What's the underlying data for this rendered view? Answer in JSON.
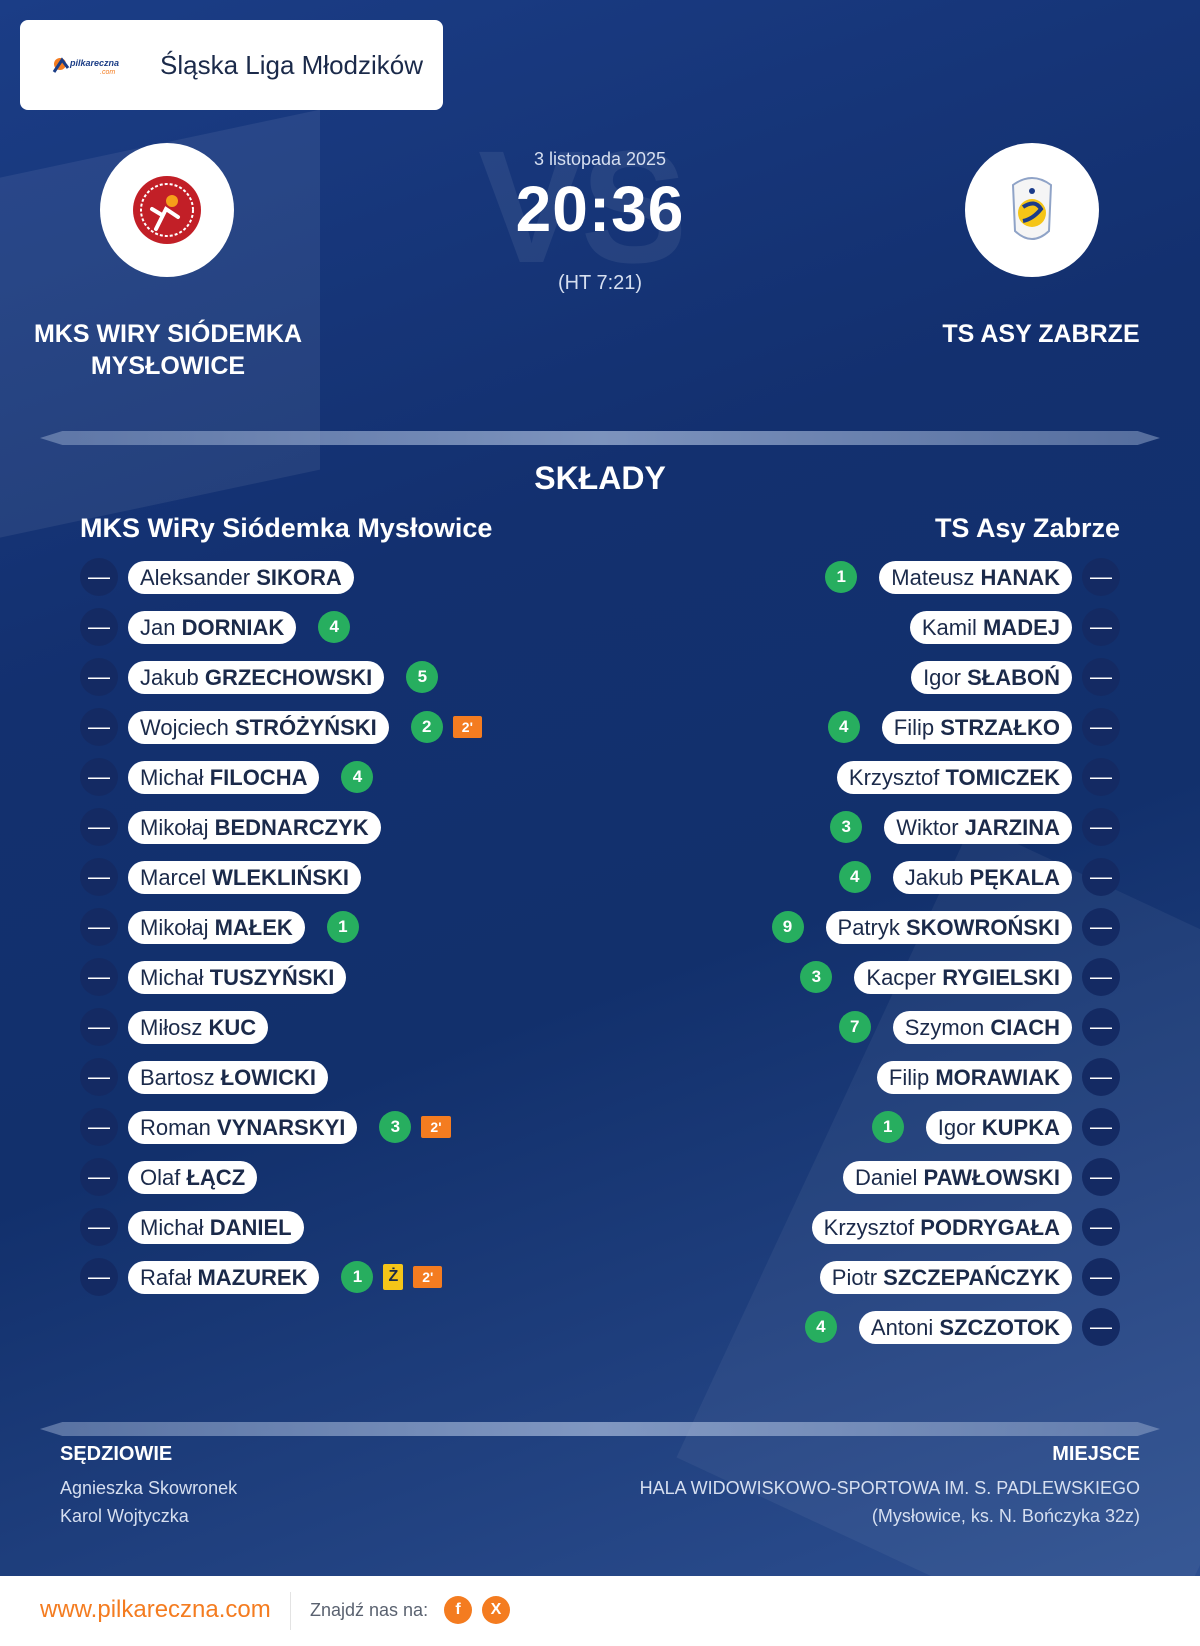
{
  "league": {
    "name": "Śląska Liga Młodzików",
    "logo_text": "pilkareczna.com"
  },
  "match": {
    "date": "3 listopada 2025",
    "score": "20:36",
    "halftime": "(HT 7:21)",
    "watermark": "VS"
  },
  "home_team": {
    "header_name": "MKS WIRY SIÓDEMKA MYSŁOWICE",
    "squad_name": "MKS WiRy Siódemka Mysłowice",
    "crest_colors": [
      "#c21f27",
      "#ffffff"
    ]
  },
  "away_team": {
    "header_name": "TS ASY ZABRZE",
    "squad_name": "TS Asy Zabrze",
    "crest_colors": [
      "#1a3b8a",
      "#f5c518"
    ]
  },
  "section_title": "SKŁADY",
  "colors": {
    "goal": "#27ae5f",
    "suspension": "#f47c20",
    "yellow_card": "#f5c518",
    "brand_orange": "#f47c20",
    "navy": "#142a63"
  },
  "home_players": [
    {
      "number": "—",
      "first": "Aleksander",
      "last": "SIKORA",
      "goals": "",
      "events": []
    },
    {
      "number": "—",
      "first": "Jan",
      "last": "DORNIAK",
      "goals": "4",
      "events": []
    },
    {
      "number": "—",
      "first": "Jakub",
      "last": "GRZECHOWSKI",
      "goals": "5",
      "events": []
    },
    {
      "number": "—",
      "first": "Wojciech",
      "last": "STRÓŻYŃSKI",
      "goals": "2",
      "events": [
        "2'"
      ]
    },
    {
      "number": "—",
      "first": "Michał",
      "last": "FILOCHA",
      "goals": "4",
      "events": []
    },
    {
      "number": "—",
      "first": "Mikołaj",
      "last": "BEDNARCZYK",
      "goals": "",
      "events": []
    },
    {
      "number": "—",
      "first": "Marcel",
      "last": "WLEKLIŃSKI",
      "goals": "",
      "events": []
    },
    {
      "number": "—",
      "first": "Mikołaj",
      "last": "MAŁEK",
      "goals": "1",
      "events": []
    },
    {
      "number": "—",
      "first": "Michał",
      "last": "TUSZYŃSKI",
      "goals": "",
      "events": []
    },
    {
      "number": "—",
      "first": "Miłosz",
      "last": "KUC",
      "goals": "",
      "events": []
    },
    {
      "number": "—",
      "first": "Bartosz",
      "last": "ŁOWICKI",
      "goals": "",
      "events": []
    },
    {
      "number": "—",
      "first": "Roman",
      "last": "VYNARSKYI",
      "goals": "3",
      "events": [
        "2'"
      ]
    },
    {
      "number": "—",
      "first": "Olaf",
      "last": "ŁĄCZ",
      "goals": "",
      "events": []
    },
    {
      "number": "—",
      "first": "Michał",
      "last": "DANIEL",
      "goals": "",
      "events": []
    },
    {
      "number": "—",
      "first": "Rafał",
      "last": "MAZUREK",
      "goals": "1",
      "events": [
        "Ż",
        "2'"
      ]
    }
  ],
  "away_players": [
    {
      "number": "—",
      "first": "Mateusz",
      "last": "HANAK",
      "goals": "1",
      "events": []
    },
    {
      "number": "—",
      "first": "Kamil",
      "last": "MADEJ",
      "goals": "",
      "events": []
    },
    {
      "number": "—",
      "first": "Igor",
      "last": "SŁABOŃ",
      "goals": "",
      "events": []
    },
    {
      "number": "—",
      "first": "Filip",
      "last": "STRZAŁKO",
      "goals": "4",
      "events": []
    },
    {
      "number": "—",
      "first": "Krzysztof",
      "last": "TOMICZEK",
      "goals": "",
      "events": []
    },
    {
      "number": "—",
      "first": "Wiktor",
      "last": "JARZINA",
      "goals": "3",
      "events": []
    },
    {
      "number": "—",
      "first": "Jakub",
      "last": "PĘKALA",
      "goals": "4",
      "events": []
    },
    {
      "number": "—",
      "first": "Patryk",
      "last": "SKOWROŃSKI",
      "goals": "9",
      "events": []
    },
    {
      "number": "—",
      "first": "Kacper",
      "last": "RYGIELSKI",
      "goals": "3",
      "events": []
    },
    {
      "number": "—",
      "first": "Szymon",
      "last": "CIACH",
      "goals": "7",
      "events": []
    },
    {
      "number": "—",
      "first": "Filip",
      "last": "MORAWIAK",
      "goals": "",
      "events": []
    },
    {
      "number": "—",
      "first": "Igor",
      "last": "KUPKA",
      "goals": "1",
      "events": []
    },
    {
      "number": "—",
      "first": "Daniel",
      "last": "PAWŁOWSKI",
      "goals": "",
      "events": []
    },
    {
      "number": "—",
      "first": "Krzysztof",
      "last": "PODRYGAŁA",
      "goals": "",
      "events": []
    },
    {
      "number": "—",
      "first": "Piotr",
      "last": "SZCZEPAŃCZYK",
      "goals": "",
      "events": []
    },
    {
      "number": "—",
      "first": "Antoni",
      "last": "SZCZOTOK",
      "goals": "4",
      "events": []
    }
  ],
  "referees": {
    "label": "SĘDZIOWIE",
    "names": [
      "Agnieszka Skowronek",
      "Karol Wojtyczka"
    ]
  },
  "venue": {
    "label": "MIEJSCE",
    "name": "HALA WIDOWISKOWO-SPORTOWA IM. S. PADLEWSKIEGO",
    "address": "(Mysłowice, ks. N. Bończyka 32z)"
  },
  "footer": {
    "site": "www.pilkareczna.com",
    "find_us": "Znajdź nas na:",
    "social": [
      {
        "icon": "facebook-icon",
        "glyph": "f"
      },
      {
        "icon": "x-icon",
        "glyph": "X"
      }
    ]
  }
}
